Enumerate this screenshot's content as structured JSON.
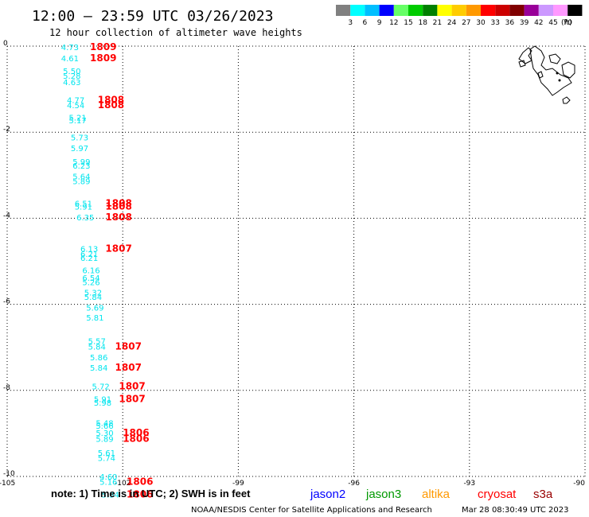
{
  "header": {
    "title": "12:00 – 23:59 UTC 03/26/2023",
    "subtitle": "12 hour collection of altimeter wave heights"
  },
  "colorbar": {
    "labels": [
      "3",
      "6",
      "9",
      "12",
      "15",
      "18",
      "21",
      "24",
      "27",
      "30",
      "33",
      "36",
      "39",
      "42",
      "45",
      "70"
    ],
    "unit": "(ft)",
    "colors": [
      "#808080",
      "#00ffff",
      "#00bfff",
      "#0000ff",
      "#66ff66",
      "#00cc00",
      "#008000",
      "#ffff00",
      "#ffcc00",
      "#ff9900",
      "#ff0000",
      "#cc0000",
      "#800000",
      "#990099",
      "#cc99ff",
      "#ff99ff",
      "#000000"
    ]
  },
  "footer": {
    "note": "note:  1) Time is in UTC;  2) SWH is in feet",
    "credit": "NOAA/NESDIS Center for Satellite Applications and Research",
    "timestamp": "Mar 28 08:30:49 UTC 2023"
  },
  "legend": [
    {
      "name": "jason2",
      "color": "#0000ff"
    },
    {
      "name": "jason3",
      "color": "#009900"
    },
    {
      "name": "altika",
      "color": "#ff9900"
    },
    {
      "name": "cryosat",
      "color": "#ff0000"
    },
    {
      "name": "s3a",
      "color": "#990000"
    }
  ],
  "chart_data": {
    "type": "scatter",
    "xlim": [
      -105,
      -90
    ],
    "ylim": [
      -10,
      0
    ],
    "xticks": [
      "-105",
      "-102",
      "-99",
      "-96",
      "-93",
      "-90"
    ],
    "yticks": [
      "0",
      "-2",
      "-4",
      "-6",
      "-8",
      "-10"
    ],
    "grid": true,
    "swh_points": [
      {
        "lon": -103.6,
        "lat": -0.02,
        "value": "4.73"
      },
      {
        "lon": -103.6,
        "lat": -0.28,
        "value": "4.61"
      },
      {
        "lon": -103.55,
        "lat": -0.57,
        "value": "5.50"
      },
      {
        "lon": -103.55,
        "lat": -0.68,
        "value": "5.28"
      },
      {
        "lon": -103.55,
        "lat": -0.83,
        "value": "4.63"
      },
      {
        "lon": -103.45,
        "lat": -1.25,
        "value": "4.77"
      },
      {
        "lon": -103.45,
        "lat": -1.37,
        "value": "4.54"
      },
      {
        "lon": -103.4,
        "lat": -1.65,
        "value": "5.21"
      },
      {
        "lon": -103.4,
        "lat": -1.72,
        "value": "5.17"
      },
      {
        "lon": -103.35,
        "lat": -2.12,
        "value": "5.73"
      },
      {
        "lon": -103.35,
        "lat": -2.37,
        "value": "5.97"
      },
      {
        "lon": -103.3,
        "lat": -2.68,
        "value": "5.99"
      },
      {
        "lon": -103.3,
        "lat": -2.77,
        "value": "6.23"
      },
      {
        "lon": -103.3,
        "lat": -3.02,
        "value": "5.64"
      },
      {
        "lon": -103.3,
        "lat": -3.13,
        "value": "5.89"
      },
      {
        "lon": -103.25,
        "lat": -3.65,
        "value": "6.51"
      },
      {
        "lon": -103.25,
        "lat": -3.72,
        "value": "5.91"
      },
      {
        "lon": -103.2,
        "lat": -3.97,
        "value": "6.35"
      },
      {
        "lon": -103.1,
        "lat": -4.7,
        "value": "6.13"
      },
      {
        "lon": -103.1,
        "lat": -4.82,
        "value": "6.21"
      },
      {
        "lon": -103.1,
        "lat": -4.92,
        "value": "6.21"
      },
      {
        "lon": -103.05,
        "lat": -5.2,
        "value": "6.16"
      },
      {
        "lon": -103.05,
        "lat": -5.38,
        "value": "6.54"
      },
      {
        "lon": -103.05,
        "lat": -5.48,
        "value": "5.26"
      },
      {
        "lon": -103.0,
        "lat": -5.72,
        "value": "5.32"
      },
      {
        "lon": -103.0,
        "lat": -5.82,
        "value": "5.84"
      },
      {
        "lon": -102.95,
        "lat": -6.07,
        "value": "5.69"
      },
      {
        "lon": -102.95,
        "lat": -6.3,
        "value": "5.81"
      },
      {
        "lon": -102.9,
        "lat": -6.85,
        "value": "5.57"
      },
      {
        "lon": -102.9,
        "lat": -6.98,
        "value": "5.84"
      },
      {
        "lon": -102.85,
        "lat": -7.23,
        "value": "5.86"
      },
      {
        "lon": -102.85,
        "lat": -7.47,
        "value": "5.84"
      },
      {
        "lon": -102.8,
        "lat": -7.9,
        "value": "5.72"
      },
      {
        "lon": -102.75,
        "lat": -8.2,
        "value": "5.91"
      },
      {
        "lon": -102.75,
        "lat": -8.28,
        "value": "5.98"
      },
      {
        "lon": -102.7,
        "lat": -8.75,
        "value": "5.48"
      },
      {
        "lon": -102.7,
        "lat": -8.82,
        "value": "5.66"
      },
      {
        "lon": -102.7,
        "lat": -8.98,
        "value": "5.30"
      },
      {
        "lon": -102.7,
        "lat": -9.12,
        "value": "5.89"
      },
      {
        "lon": -102.65,
        "lat": -9.45,
        "value": "5.61"
      },
      {
        "lon": -102.65,
        "lat": -9.57,
        "value": "5.74"
      },
      {
        "lon": -102.6,
        "lat": -10.0,
        "value": "4.60"
      },
      {
        "lon": -102.6,
        "lat": -10.12,
        "value": "5.16"
      },
      {
        "lon": -102.55,
        "lat": -10.42,
        "value": "5.34"
      }
    ],
    "time_labels": [
      {
        "lon": -102.85,
        "lat": -0.02,
        "value": "1809"
      },
      {
        "lon": -102.85,
        "lat": -0.28,
        "value": "1809"
      },
      {
        "lon": -102.65,
        "lat": -1.25,
        "value": "1808"
      },
      {
        "lon": -102.65,
        "lat": -1.37,
        "value": "1808"
      },
      {
        "lon": -102.45,
        "lat": -3.65,
        "value": "1808"
      },
      {
        "lon": -102.45,
        "lat": -3.72,
        "value": "1808"
      },
      {
        "lon": -102.45,
        "lat": -3.97,
        "value": "1808"
      },
      {
        "lon": -102.45,
        "lat": -4.7,
        "value": "1807"
      },
      {
        "lon": -102.2,
        "lat": -6.98,
        "value": "1807"
      },
      {
        "lon": -102.2,
        "lat": -7.47,
        "value": "1807"
      },
      {
        "lon": -102.1,
        "lat": -7.9,
        "value": "1807"
      },
      {
        "lon": -102.1,
        "lat": -8.2,
        "value": "1807"
      },
      {
        "lon": -102.0,
        "lat": -8.98,
        "value": "1806"
      },
      {
        "lon": -102.0,
        "lat": -9.12,
        "value": "1806"
      },
      {
        "lon": -101.9,
        "lat": -10.12,
        "value": "1806"
      },
      {
        "lon": -101.9,
        "lat": -10.42,
        "value": "1806"
      }
    ]
  }
}
